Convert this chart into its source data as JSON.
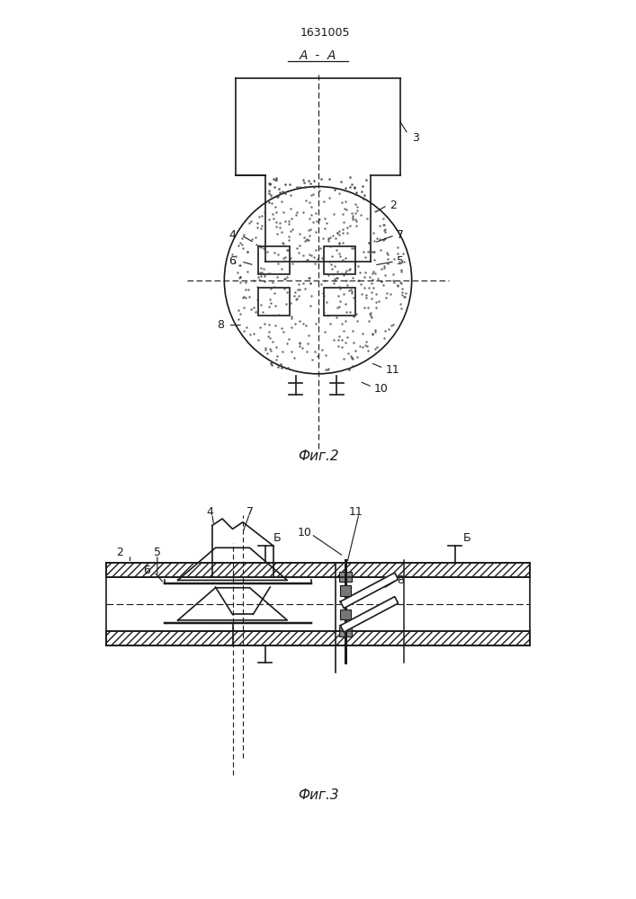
{
  "patent_number": "1631005",
  "fig2_label": "Фиг.2",
  "fig3_label": "Фиг.3",
  "section_label": "A - A",
  "bg_color": "#ffffff",
  "line_color": "#1a1a1a"
}
